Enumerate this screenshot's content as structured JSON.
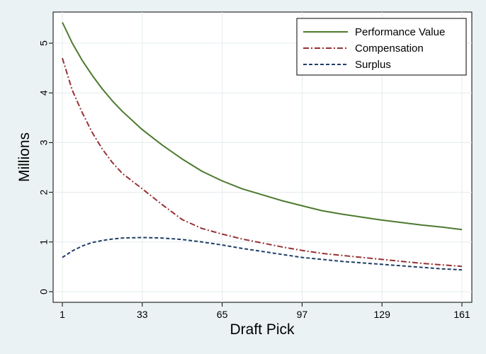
{
  "chart_data": {
    "type": "line",
    "title": "",
    "xlabel": "Draft Pick",
    "ylabel": "Millions",
    "xlim": [
      1,
      161
    ],
    "ylim": [
      0,
      5.5
    ],
    "xticks": [
      1,
      33,
      65,
      97,
      129,
      161
    ],
    "yticks": [
      0,
      1,
      2,
      3,
      4,
      5
    ],
    "grid": true,
    "legend": "top-right",
    "x": [
      1,
      5,
      9,
      13,
      17,
      21,
      25,
      33,
      41,
      49,
      57,
      65,
      73,
      81,
      89,
      97,
      105,
      113,
      121,
      129,
      137,
      145,
      153,
      161
    ],
    "series": [
      {
        "name": "Performance Value",
        "color": "#4d7a2e",
        "dash": "solid",
        "values": [
          5.42,
          5.0,
          4.65,
          4.35,
          4.08,
          3.84,
          3.63,
          3.26,
          2.95,
          2.67,
          2.42,
          2.23,
          2.07,
          1.95,
          1.83,
          1.73,
          1.63,
          1.56,
          1.5,
          1.44,
          1.39,
          1.34,
          1.3,
          1.25
        ]
      },
      {
        "name": "Compensation",
        "color": "#963234",
        "dash": "dash-dot",
        "values": [
          4.7,
          4.05,
          3.6,
          3.2,
          2.87,
          2.6,
          2.38,
          2.07,
          1.75,
          1.45,
          1.27,
          1.16,
          1.06,
          0.98,
          0.9,
          0.83,
          0.77,
          0.73,
          0.69,
          0.65,
          0.61,
          0.57,
          0.54,
          0.51
        ]
      },
      {
        "name": "Surplus",
        "color": "#1f3f66",
        "dash": "dashed",
        "values": [
          0.69,
          0.82,
          0.92,
          0.99,
          1.03,
          1.06,
          1.08,
          1.09,
          1.08,
          1.05,
          1.0,
          0.94,
          0.87,
          0.81,
          0.75,
          0.69,
          0.65,
          0.61,
          0.58,
          0.55,
          0.52,
          0.49,
          0.46,
          0.44
        ]
      }
    ]
  }
}
